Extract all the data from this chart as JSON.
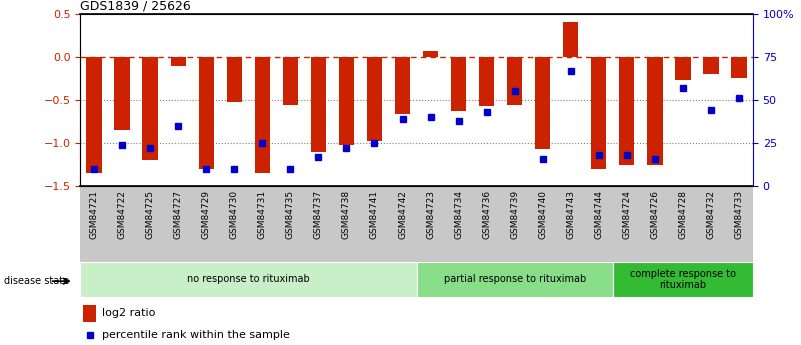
{
  "title": "GDS1839 / 25626",
  "samples": [
    "GSM84721",
    "GSM84722",
    "GSM84725",
    "GSM84727",
    "GSM84729",
    "GSM84730",
    "GSM84731",
    "GSM84735",
    "GSM84737",
    "GSM84738",
    "GSM84741",
    "GSM84742",
    "GSM84723",
    "GSM84734",
    "GSM84736",
    "GSM84739",
    "GSM84740",
    "GSM84743",
    "GSM84744",
    "GSM84724",
    "GSM84726",
    "GSM84728",
    "GSM84732",
    "GSM84733"
  ],
  "log2_ratio": [
    -1.35,
    -0.85,
    -1.2,
    -0.1,
    -1.3,
    -0.52,
    -1.35,
    -0.56,
    -1.1,
    -1.02,
    -0.97,
    -0.66,
    0.07,
    -0.63,
    -0.57,
    -0.56,
    -1.07,
    0.4,
    -1.3,
    -1.25,
    -1.25,
    -0.27,
    -0.2,
    -0.25
  ],
  "percentile_rank": [
    10,
    24,
    22,
    35,
    10,
    10,
    25,
    10,
    17,
    22,
    25,
    39,
    40,
    38,
    43,
    55,
    16,
    67,
    18,
    18,
    16,
    57,
    44,
    51
  ],
  "bar_color": "#cc2200",
  "dot_color": "#0000cc",
  "ylim_left": [
    -1.5,
    0.5
  ],
  "ylim_right": [
    0,
    100
  ],
  "yticks_left": [
    -1.5,
    -1.0,
    -0.5,
    0.0,
    0.5
  ],
  "yticks_right": [
    0,
    25,
    50,
    75,
    100
  ],
  "ytick_right_labels": [
    "0",
    "25",
    "50",
    "75",
    "100%"
  ],
  "hline_y": 0.0,
  "dotted_hlines": [
    -0.5,
    -1.0
  ],
  "groups": [
    {
      "label": "no response to rituximab",
      "start": 0,
      "end": 12,
      "color": "#c8efc8"
    },
    {
      "label": "partial response to rituximab",
      "start": 12,
      "end": 19,
      "color": "#88dd88"
    },
    {
      "label": "complete response to\nrituximab",
      "start": 19,
      "end": 24,
      "color": "#33bb33"
    }
  ],
  "disease_state_label": "disease state",
  "legend_log2": "log2 ratio",
  "legend_pct": "percentile rank within the sample",
  "bar_width": 0.55,
  "background_color": "#ffffff",
  "plot_bg_color": "#ffffff",
  "label_bg_color": "#c8c8c8"
}
